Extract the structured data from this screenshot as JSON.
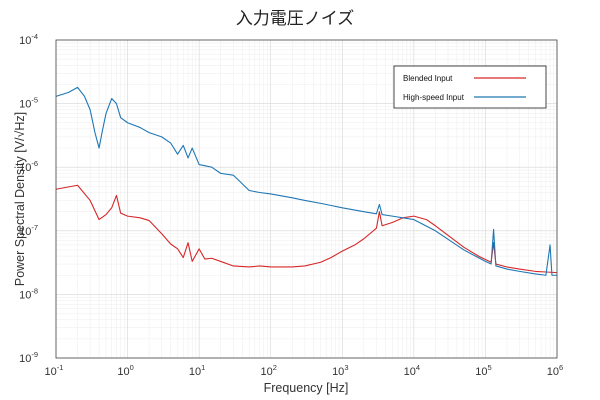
{
  "chart_data": {
    "type": "line",
    "title": "入力電圧ノイズ",
    "xlabel": "Frequency [Hz]",
    "ylabel": "Power Spectral Density [V/√Hz]",
    "x_scale": "log",
    "y_scale": "log",
    "xlim": [
      0.1,
      1000000
    ],
    "ylim": [
      1e-09,
      0.0001
    ],
    "grid": true,
    "legend_position": "top-right",
    "x_ticks": [
      {
        "base": "10",
        "exp": "-1"
      },
      {
        "base": "10",
        "exp": "0"
      },
      {
        "base": "10",
        "exp": "1"
      },
      {
        "base": "10",
        "exp": "2"
      },
      {
        "base": "10",
        "exp": "3"
      },
      {
        "base": "10",
        "exp": "4"
      },
      {
        "base": "10",
        "exp": "5"
      },
      {
        "base": "10",
        "exp": "6"
      }
    ],
    "y_ticks": [
      {
        "base": "10",
        "exp": "-9"
      },
      {
        "base": "10",
        "exp": "-8"
      },
      {
        "base": "10",
        "exp": "-7"
      },
      {
        "base": "10",
        "exp": "-6"
      },
      {
        "base": "10",
        "exp": "-5"
      },
      {
        "base": "10",
        "exp": "-4"
      }
    ],
    "series": [
      {
        "name": "Blended Input",
        "color": "#d62728",
        "points": [
          [
            0.1,
            4.5e-07
          ],
          [
            0.2,
            5.2e-07
          ],
          [
            0.3,
            3e-07
          ],
          [
            0.4,
            1.5e-07
          ],
          [
            0.5,
            1.8e-07
          ],
          [
            0.6,
            2.3e-07
          ],
          [
            0.7,
            3.6e-07
          ],
          [
            0.8,
            1.9e-07
          ],
          [
            1,
            1.7e-07
          ],
          [
            1.5,
            1.6e-07
          ],
          [
            2,
            1.45e-07
          ],
          [
            3,
            9e-08
          ],
          [
            4,
            6.2e-08
          ],
          [
            5,
            5.2e-08
          ],
          [
            6,
            3.8e-08
          ],
          [
            7,
            6.5e-08
          ],
          [
            8,
            3.3e-08
          ],
          [
            10,
            5.2e-08
          ],
          [
            12,
            3.6e-08
          ],
          [
            15,
            3.7e-08
          ],
          [
            20,
            3.3e-08
          ],
          [
            30,
            2.8e-08
          ],
          [
            50,
            2.7e-08
          ],
          [
            70,
            2.8e-08
          ],
          [
            100,
            2.7e-08
          ],
          [
            200,
            2.7e-08
          ],
          [
            300,
            2.8e-08
          ],
          [
            500,
            3.2e-08
          ],
          [
            700,
            3.8e-08
          ],
          [
            1000,
            4.8e-08
          ],
          [
            1500,
            6e-08
          ],
          [
            2000,
            7.5e-08
          ],
          [
            3000,
            1.1e-07
          ],
          [
            3300,
            2e-07
          ],
          [
            3600,
            1.2e-07
          ],
          [
            5000,
            1.35e-07
          ],
          [
            7000,
            1.6e-07
          ],
          [
            10000,
            1.7e-07
          ],
          [
            15000,
            1.5e-07
          ],
          [
            20000,
            1.2e-07
          ],
          [
            30000,
            8.5e-08
          ],
          [
            50000,
            5.5e-08
          ],
          [
            80000,
            4e-08
          ],
          [
            120000,
            3.2e-08
          ],
          [
            130000,
            6.5e-08
          ],
          [
            140000,
            3e-08
          ],
          [
            200000,
            2.7e-08
          ],
          [
            300000,
            2.5e-08
          ],
          [
            500000,
            2.3e-08
          ],
          [
            700000,
            2.25e-08
          ],
          [
            1000000,
            2.2e-08
          ]
        ]
      },
      {
        "name": "High-speed Input",
        "color": "#1f77b4",
        "points": [
          [
            0.1,
            1.3e-05
          ],
          [
            0.15,
            1.5e-05
          ],
          [
            0.2,
            1.8e-05
          ],
          [
            0.25,
            1.3e-05
          ],
          [
            0.3,
            8e-06
          ],
          [
            0.35,
            3.5e-06
          ],
          [
            0.4,
            2e-06
          ],
          [
            0.45,
            4e-06
          ],
          [
            0.5,
            7e-06
          ],
          [
            0.6,
            1.2e-05
          ],
          [
            0.7,
            1e-05
          ],
          [
            0.8,
            6e-06
          ],
          [
            1,
            5e-06
          ],
          [
            1.5,
            4.2e-06
          ],
          [
            2,
            3.5e-06
          ],
          [
            3,
            3e-06
          ],
          [
            4,
            2.4e-06
          ],
          [
            5,
            1.6e-06
          ],
          [
            6,
            2.2e-06
          ],
          [
            7,
            1.4e-06
          ],
          [
            8,
            2e-06
          ],
          [
            10,
            1.1e-06
          ],
          [
            15,
            1e-06
          ],
          [
            20,
            8e-07
          ],
          [
            30,
            7.5e-07
          ],
          [
            40,
            5.5e-07
          ],
          [
            50,
            4.3e-07
          ],
          [
            70,
            4e-07
          ],
          [
            100,
            3.8e-07
          ],
          [
            150,
            3.5e-07
          ],
          [
            200,
            3.3e-07
          ],
          [
            300,
            3e-07
          ],
          [
            500,
            2.7e-07
          ],
          [
            700,
            2.5e-07
          ],
          [
            1000,
            2.3e-07
          ],
          [
            2000,
            2e-07
          ],
          [
            3000,
            1.85e-07
          ],
          [
            3300,
            2.6e-07
          ],
          [
            3600,
            1.8e-07
          ],
          [
            5000,
            1.7e-07
          ],
          [
            10000,
            1.5e-07
          ],
          [
            20000,
            1e-07
          ],
          [
            50000,
            5e-08
          ],
          [
            100000,
            3.3e-08
          ],
          [
            120000,
            3e-08
          ],
          [
            130000,
            1.05e-07
          ],
          [
            140000,
            2.8e-08
          ],
          [
            200000,
            2.5e-08
          ],
          [
            300000,
            2.3e-08
          ],
          [
            500000,
            2.1e-08
          ],
          [
            700000,
            2e-08
          ],
          [
            800000,
            6e-08
          ],
          [
            850000,
            2e-08
          ],
          [
            1000000,
            2e-08
          ]
        ]
      }
    ]
  }
}
